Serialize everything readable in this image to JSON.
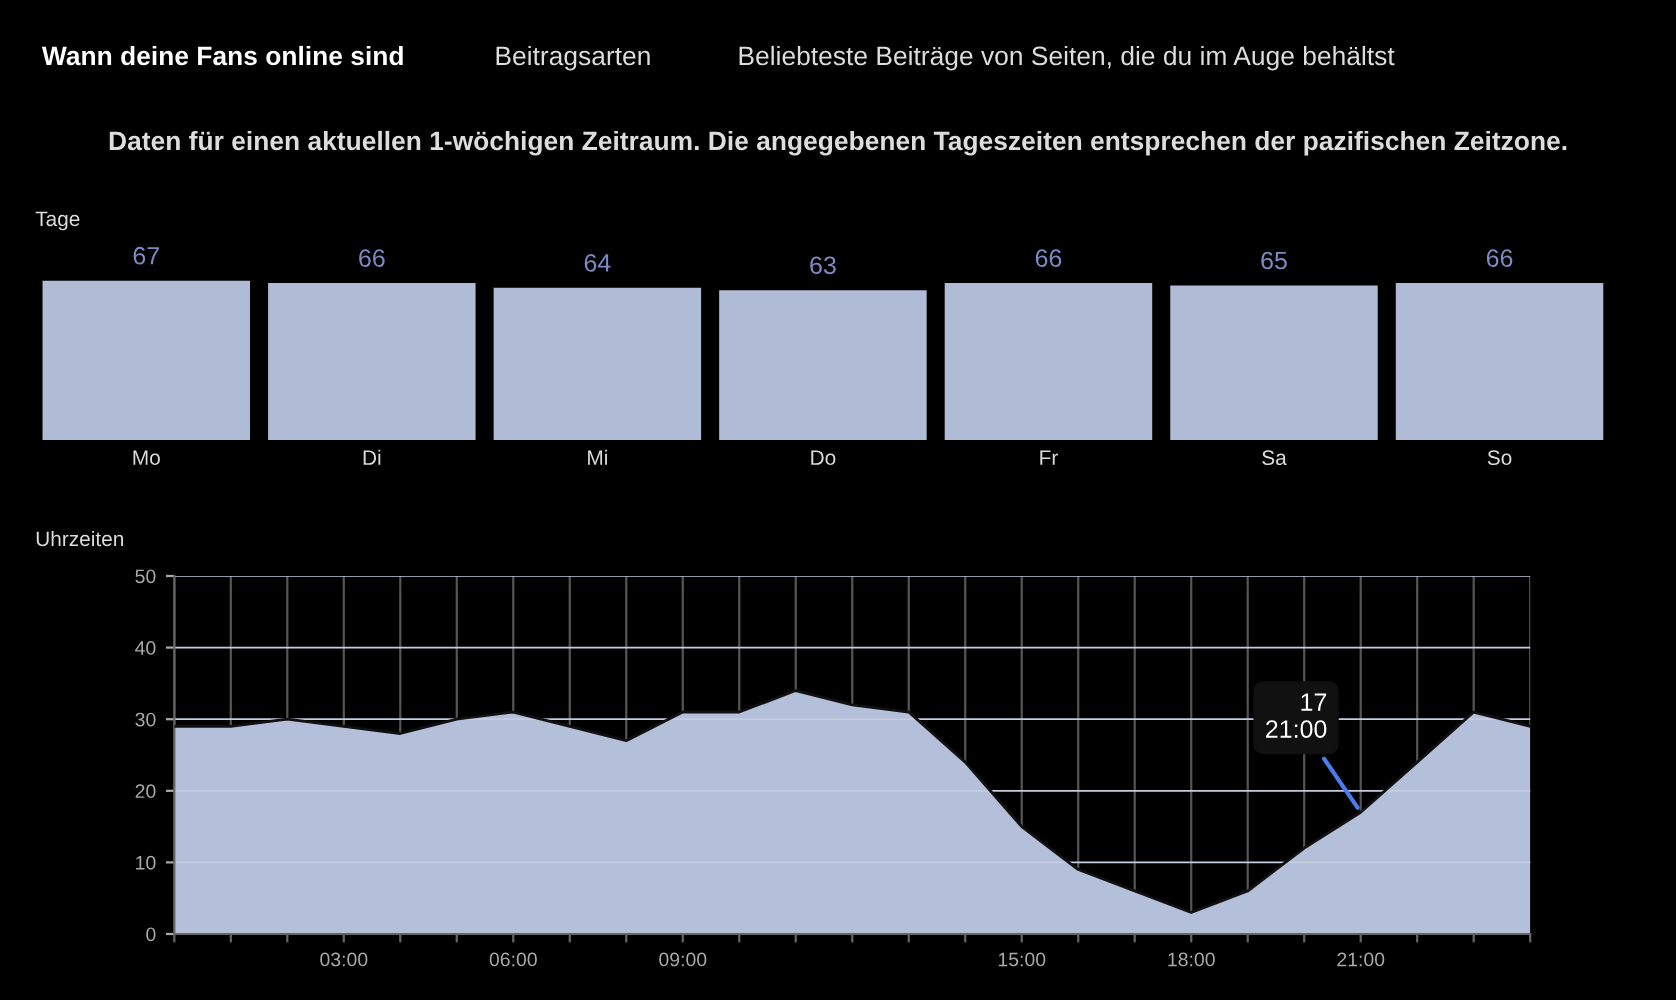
{
  "chart_data": [
    {
      "type": "bar",
      "title": "Tage",
      "subtitle": "Daten für einen aktuellen 1-wöchigen Zeitraum. Die angegebenen Tageszeiten entsprechen der pazifischen Zeitzone.",
      "annotations": [
        "Wann deine Fans online sind",
        "Beitragsarten",
        "Beliebteste Beiträge von Seiten, die du im Auge behältst"
      ],
      "categories": [
        "Mo",
        "Di",
        "Mi",
        "Do",
        "Fr",
        "Sa",
        "So"
      ],
      "values": [
        67,
        66,
        64,
        63,
        66,
        65,
        66
      ],
      "color": "#b0bcd6",
      "data_labels": true,
      "tick_labels": "x"
    },
    {
      "type": "area",
      "title": "Uhrzeiten",
      "x": [
        0,
        1,
        2,
        3,
        4,
        5,
        6,
        7,
        8,
        9,
        10,
        11,
        12,
        13,
        14,
        15,
        16,
        17,
        18,
        19,
        20,
        21,
        22,
        23,
        24
      ],
      "values": [
        29,
        29,
        30,
        29,
        28,
        30,
        31,
        29,
        27,
        31,
        31,
        34,
        32,
        31,
        24,
        15,
        9,
        6,
        3,
        6,
        12,
        17,
        24,
        31,
        29
      ],
      "color": "#b4bfd9",
      "xlim": [
        0,
        24
      ],
      "xticks": [
        {
          "value": 0,
          "label": null
        },
        {
          "value": 1,
          "label": null
        },
        {
          "value": 2,
          "label": null
        },
        {
          "value": 3,
          "label": "03:00"
        },
        {
          "value": 4,
          "label": null
        },
        {
          "value": 5,
          "label": null
        },
        {
          "value": 6,
          "label": "06:00"
        },
        {
          "value": 7,
          "label": null
        },
        {
          "value": 8,
          "label": null
        },
        {
          "value": 9,
          "label": "09:00"
        },
        {
          "value": 10,
          "label": null
        },
        {
          "value": 11,
          "label": null
        },
        {
          "value": 12,
          "label": null
        },
        {
          "value": 13,
          "label": null
        },
        {
          "value": 14,
          "label": null
        },
        {
          "value": 15,
          "label": "15:00"
        },
        {
          "value": 16,
          "label": null
        },
        {
          "value": 17,
          "label": null
        },
        {
          "value": 18,
          "label": "18:00"
        },
        {
          "value": 19,
          "label": null
        },
        {
          "value": 20,
          "label": null
        },
        {
          "value": 21,
          "label": "21:00"
        },
        {
          "value": 22,
          "label": null
        },
        {
          "value": 23,
          "label": null
        },
        {
          "value": 24,
          "label": null
        }
      ],
      "ylim": [
        0,
        50
      ],
      "yticks": [
        0,
        10,
        20,
        30,
        40,
        50
      ],
      "grid": true,
      "annotations": [
        {
          "text": "17\n21:00",
          "x": 21,
          "y": 17
        }
      ]
    }
  ]
}
